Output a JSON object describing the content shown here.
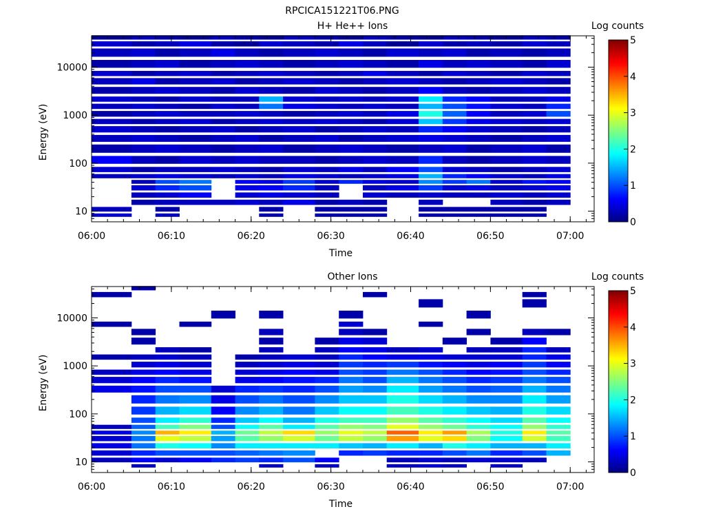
{
  "figure_title": "RPCICA151221T06.PNG",
  "colorbar": {
    "label": "Log counts",
    "ticks": [
      "0",
      "1",
      "2",
      "3",
      "4",
      "5"
    ],
    "range": [
      0,
      5
    ],
    "colormap": "jet"
  },
  "chart_data": [
    {
      "type": "heatmap",
      "title": "H+ He++ Ions",
      "xlabel": "Time",
      "ylabel": "Energy (eV)",
      "yscale": "log",
      "ylim": [
        6,
        45000
      ],
      "xlim": [
        "06:00",
        "07:03"
      ],
      "x_ticks": [
        "06:00",
        "06:10",
        "06:20",
        "06:30",
        "06:40",
        "06:50",
        "07:00"
      ],
      "y_ticks": [
        "10",
        "100",
        "1000",
        "10000"
      ],
      "x_bins": [
        "06:00",
        "06:05",
        "06:08",
        "06:11",
        "06:15",
        "06:18",
        "06:21",
        "06:24",
        "06:28",
        "06:31",
        "06:34",
        "06:37",
        "06:41",
        "06:44",
        "06:47",
        "06:50",
        "06:54",
        "06:57",
        "07:00"
      ],
      "y_bins": [
        40000,
        30000,
        20000,
        10000,
        7000,
        5000,
        3000,
        2000,
        1500,
        1000,
        700,
        500,
        300,
        200,
        100,
        70,
        50,
        40,
        30,
        20,
        15,
        10,
        8
      ],
      "z": [
        [
          0.1,
          0.3,
          0.2,
          0.1,
          0.3,
          0.2,
          0.1,
          0.3,
          0.2,
          0.1,
          0.3,
          0.2,
          0.1,
          0.3,
          0.2,
          0.1,
          0.3,
          0.2
        ],
        [
          0.4,
          0.2,
          0.3,
          0.5,
          0.2,
          0.1,
          0.4,
          0.3,
          0.2,
          0.5,
          0.3,
          0.1,
          0.4,
          0.2,
          0.3,
          0.2,
          0.4,
          0.3
        ],
        [
          0.3,
          0.4,
          0.2,
          0.3,
          0.5,
          0.3,
          0.2,
          0.3,
          0.4,
          0.3,
          0.2,
          0.4,
          0.3,
          0.4,
          0.2,
          0.3,
          0.2,
          0.3
        ],
        [
          0.2,
          0.3,
          0.4,
          0.2,
          0.3,
          0.4,
          0.3,
          0.2,
          0.3,
          0.4,
          0.3,
          0.2,
          0.5,
          0.3,
          0.4,
          0.3,
          0.2,
          0.4
        ],
        [
          0.4,
          0.2,
          0.3,
          0.4,
          0.2,
          0.3,
          0.4,
          0.3,
          0.2,
          0.3,
          0.5,
          0.3,
          0.2,
          0.4,
          0.3,
          0.2,
          0.4,
          0.3
        ],
        [
          0.3,
          0.5,
          0.2,
          0.3,
          0.4,
          0.2,
          0.3,
          0.4,
          0.3,
          0.2,
          0.3,
          0.4,
          0.3,
          0.2,
          0.3,
          0.4,
          0.3,
          0.2
        ],
        [
          0.2,
          0.3,
          0.4,
          0.3,
          0.2,
          0.4,
          0.3,
          0.2,
          0.4,
          0.3,
          0.2,
          0.3,
          0.6,
          0.3,
          0.2,
          0.3,
          0.4,
          0.3
        ],
        [
          0.4,
          0.3,
          0.2,
          0.4,
          0.3,
          0.3,
          1.5,
          0.4,
          0.3,
          0.4,
          0.3,
          0.4,
          1.8,
          0.8,
          0.6,
          0.3,
          0.3,
          0.5
        ],
        [
          0.3,
          0.4,
          0.3,
          0.2,
          0.4,
          0.3,
          1.2,
          0.5,
          0.4,
          0.3,
          0.4,
          0.3,
          1.5,
          1.0,
          0.7,
          0.4,
          0.3,
          0.8
        ],
        [
          0.2,
          0.3,
          0.4,
          0.3,
          0.3,
          0.4,
          0.3,
          0.2,
          0.3,
          0.4,
          0.3,
          0.5,
          2.0,
          1.1,
          0.6,
          0.3,
          0.4,
          1.0
        ],
        [
          0.3,
          0.2,
          0.3,
          0.4,
          0.2,
          0.3,
          0.4,
          0.3,
          0.4,
          0.3,
          0.2,
          0.4,
          1.6,
          0.9,
          0.5,
          0.4,
          0.3,
          0.4
        ],
        [
          0.4,
          0.3,
          0.2,
          0.3,
          0.4,
          0.2,
          0.3,
          0.4,
          0.2,
          0.3,
          0.4,
          0.3,
          0.8,
          0.6,
          0.4,
          0.3,
          0.2,
          0.3
        ],
        [
          0.3,
          0.4,
          0.3,
          0.2,
          0.3,
          0.4,
          0.2,
          0.3,
          0.4,
          0.2,
          0.3,
          0.4,
          0.5,
          0.4,
          0.3,
          0.2,
          0.3,
          0.4
        ],
        [
          0.2,
          0.3,
          0.4,
          0.3,
          0.2,
          0.3,
          0.4,
          0.2,
          0.3,
          0.4,
          0.3,
          0.2,
          0.3,
          0.4,
          0.2,
          0.3,
          0.4,
          0.2
        ],
        [
          0.6,
          0.3,
          0.2,
          0.4,
          0.3,
          0.4,
          0.3,
          0.3,
          0.2,
          0.3,
          0.4,
          0.3,
          0.8,
          0.3,
          0.2,
          0.3,
          0.4,
          0.3
        ],
        [
          0.4,
          0.2,
          0.3,
          0.3,
          0.4,
          0.3,
          0.2,
          0.4,
          0.3,
          0.5,
          0.3,
          0.6,
          1.0,
          0.4,
          0.3,
          0.2,
          0.3,
          0.4
        ],
        [
          0.3,
          0.4,
          0.5,
          0.4,
          0.3,
          0.4,
          0.3,
          0.5,
          0.4,
          0.3,
          0.4,
          0.5,
          1.5,
          0.8,
          0.6,
          0.4,
          0.3,
          0.5
        ],
        [
          0.0,
          0.3,
          1.0,
          1.2,
          0.0,
          0.6,
          0.5,
          0.9,
          0.4,
          0.8,
          0.5,
          0.4,
          1.3,
          0.9,
          1.2,
          0.4,
          0.7,
          0.6
        ],
        [
          0.0,
          0.4,
          0.8,
          1.0,
          0.0,
          0.5,
          0.6,
          0.8,
          0.3,
          0.0,
          0.3,
          0.5,
          0.9,
          0.4,
          0.5,
          0.3,
          0.4,
          0.5
        ],
        [
          0.0,
          0.3,
          0.4,
          0.6,
          0.0,
          0.4,
          0.5,
          0.4,
          0.3,
          0.0,
          0.4,
          0.3,
          0.4,
          0.3,
          0.3,
          0.4,
          0.3,
          0.4
        ],
        [
          0.0,
          0.2,
          0.3,
          0.3,
          0.3,
          0.4,
          0.3,
          0.5,
          0.2,
          0.3,
          0.2,
          0.0,
          0.3,
          0.0,
          0.0,
          0.3,
          0.2,
          0.3
        ],
        [
          0.3,
          0.0,
          0.2,
          0.0,
          0.0,
          0.0,
          0.2,
          0.0,
          0.2,
          0.2,
          0.2,
          0.0,
          0.2,
          0.2,
          0.2,
          0.2,
          0.2,
          0.0
        ],
        [
          0.4,
          0.0,
          0.3,
          0.0,
          0.0,
          0.0,
          0.2,
          0.0,
          0.2,
          0.2,
          0.2,
          0.0,
          0.2,
          0.2,
          0.2,
          0.2,
          0.2,
          0.0
        ]
      ]
    },
    {
      "type": "heatmap",
      "title": "Other Ions",
      "xlabel": "Time",
      "ylabel": "Energy (eV)",
      "yscale": "log",
      "ylim": [
        6,
        45000
      ],
      "xlim": [
        "06:00",
        "07:03"
      ],
      "x_ticks": [
        "06:00",
        "06:10",
        "06:20",
        "06:30",
        "06:40",
        "06:50",
        "07:00"
      ],
      "y_ticks": [
        "10",
        "100",
        "1000",
        "10000"
      ],
      "x_bins": [
        "06:00",
        "06:05",
        "06:08",
        "06:11",
        "06:15",
        "06:18",
        "06:21",
        "06:24",
        "06:28",
        "06:31",
        "06:34",
        "06:37",
        "06:41",
        "06:44",
        "06:47",
        "06:50",
        "06:54",
        "06:57",
        "07:00"
      ],
      "y_bins": [
        40000,
        30000,
        20000,
        10000,
        7000,
        5000,
        3000,
        2000,
        1500,
        1000,
        700,
        500,
        300,
        200,
        100,
        70,
        50,
        40,
        30,
        20,
        15,
        10,
        8
      ],
      "z": [
        [
          0.0,
          0.2,
          0.0,
          0.0,
          0.0,
          0.0,
          0.0,
          0.0,
          0.0,
          0.0,
          0.0,
          0.0,
          0.0,
          0.0,
          0.0,
          0.0,
          0.0,
          0.0
        ],
        [
          0.2,
          0.0,
          0.0,
          0.0,
          0.0,
          0.0,
          0.0,
          0.0,
          0.0,
          0.0,
          0.2,
          0.0,
          0.0,
          0.0,
          0.0,
          0.0,
          0.2,
          0.0
        ],
        [
          0.0,
          0.0,
          0.0,
          0.0,
          0.0,
          0.0,
          0.0,
          0.0,
          0.0,
          0.0,
          0.0,
          0.0,
          0.2,
          0.0,
          0.0,
          0.0,
          0.2,
          0.0
        ],
        [
          0.0,
          0.0,
          0.0,
          0.0,
          0.2,
          0.0,
          0.2,
          0.0,
          0.0,
          0.2,
          0.0,
          0.0,
          0.0,
          0.0,
          0.2,
          0.0,
          0.0,
          0.0
        ],
        [
          0.2,
          0.0,
          0.0,
          0.2,
          0.0,
          0.0,
          0.0,
          0.0,
          0.0,
          0.4,
          0.0,
          0.0,
          0.2,
          0.0,
          0.0,
          0.0,
          0.0,
          0.0
        ],
        [
          0.0,
          0.2,
          0.0,
          0.0,
          0.0,
          0.0,
          0.3,
          0.0,
          0.0,
          0.3,
          0.2,
          0.0,
          0.0,
          0.0,
          0.2,
          0.0,
          0.3,
          0.2
        ],
        [
          0.0,
          0.2,
          0.0,
          0.0,
          0.0,
          0.0,
          0.2,
          0.0,
          0.2,
          0.5,
          0.4,
          0.0,
          0.0,
          0.2,
          0.0,
          0.2,
          0.6,
          0.0
        ],
        [
          0.0,
          0.0,
          0.3,
          0.2,
          0.0,
          0.0,
          0.3,
          0.0,
          0.3,
          0.6,
          0.5,
          0.3,
          0.4,
          0.0,
          0.3,
          0.3,
          0.8,
          0.3
        ],
        [
          0.2,
          0.3,
          0.4,
          0.3,
          0.0,
          0.2,
          0.3,
          0.4,
          0.3,
          0.8,
          0.6,
          0.5,
          0.5,
          0.4,
          0.4,
          0.4,
          0.8,
          0.5
        ],
        [
          0.0,
          0.4,
          0.5,
          0.4,
          0.0,
          0.3,
          0.4,
          0.5,
          0.4,
          0.9,
          0.8,
          0.9,
          0.7,
          0.6,
          0.5,
          0.6,
          0.9,
          0.6
        ],
        [
          0.3,
          0.5,
          0.6,
          0.5,
          0.0,
          0.4,
          0.5,
          0.6,
          0.5,
          1.0,
          0.9,
          1.2,
          1.0,
          0.8,
          0.6,
          0.7,
          1.0,
          0.8
        ],
        [
          0.4,
          0.6,
          0.8,
          0.7,
          0.0,
          0.5,
          0.6,
          0.7,
          0.8,
          1.2,
          1.0,
          1.5,
          1.2,
          1.0,
          0.8,
          0.9,
          1.2,
          1.0
        ],
        [
          0.5,
          0.7,
          1.0,
          1.0,
          0.4,
          0.8,
          0.9,
          0.8,
          1.0,
          1.4,
          1.3,
          1.8,
          1.4,
          1.2,
          1.0,
          1.1,
          1.5,
          1.2
        ],
        [
          0.0,
          0.8,
          1.2,
          1.3,
          0.5,
          1.0,
          1.2,
          1.0,
          1.3,
          1.6,
          1.6,
          2.0,
          1.7,
          1.5,
          1.3,
          1.3,
          1.8,
          1.4
        ],
        [
          0.0,
          0.9,
          1.5,
          1.7,
          0.6,
          1.3,
          1.5,
          1.2,
          1.6,
          1.9,
          1.9,
          2.2,
          2.0,
          1.8,
          1.6,
          1.5,
          2.0,
          1.7
        ],
        [
          0.0,
          1.0,
          1.8,
          2.1,
          0.8,
          1.6,
          1.9,
          1.5,
          2.0,
          2.2,
          2.2,
          2.6,
          2.3,
          2.1,
          1.9,
          1.7,
          2.3,
          1.9
        ],
        [
          0.3,
          1.1,
          2.2,
          2.5,
          1.0,
          1.9,
          2.3,
          1.8,
          2.3,
          2.6,
          2.5,
          3.0,
          2.6,
          2.4,
          2.1,
          1.9,
          2.6,
          2.1
        ],
        [
          0.5,
          1.3,
          3.5,
          3.2,
          1.5,
          2.4,
          2.8,
          3.3,
          2.6,
          3.0,
          2.8,
          3.9,
          3.2,
          3.6,
          2.7,
          2.0,
          3.2,
          2.3
        ],
        [
          0.4,
          1.2,
          3.0,
          2.8,
          1.4,
          2.3,
          2.6,
          2.9,
          2.4,
          2.8,
          2.6,
          3.6,
          3.0,
          3.3,
          2.5,
          1.9,
          2.9,
          2.2
        ],
        [
          0.5,
          1.2,
          2.0,
          1.9,
          1.3,
          1.8,
          1.8,
          1.8,
          1.8,
          1.6,
          1.5,
          1.8,
          1.5,
          2.0,
          1.8,
          1.5,
          1.5,
          1.8
        ],
        [
          0.4,
          0.8,
          1.0,
          1.0,
          1.0,
          1.1,
          1.2,
          1.3,
          0.0,
          0.8,
          0.9,
          0.8,
          0.8,
          1.0,
          1.2,
          0.8,
          1.0,
          1.5
        ],
        [
          0.3,
          0.6,
          0.4,
          0.6,
          0.8,
          0.9,
          0.8,
          1.0,
          0.6,
          0.0,
          0.0,
          0.3,
          0.4,
          0.3,
          0.4,
          0.4,
          0.3,
          0.0
        ],
        [
          0.0,
          0.3,
          0.0,
          0.0,
          0.0,
          0.0,
          0.3,
          0.0,
          0.3,
          0.0,
          0.0,
          0.3,
          0.4,
          0.3,
          0.0,
          0.3,
          0.0,
          0.0
        ]
      ]
    }
  ]
}
